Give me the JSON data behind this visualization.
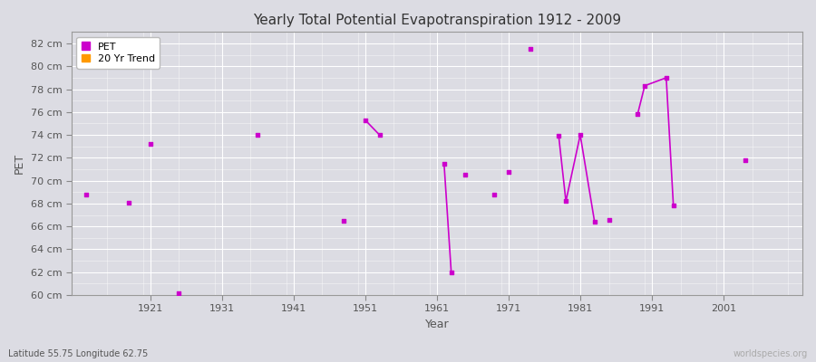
{
  "title": "Yearly Total Potential Evapotranspiration 1912 - 2009",
  "xlabel": "Year",
  "ylabel": "PET",
  "subtitle": "Latitude 55.75 Longitude 62.75",
  "watermark": "worldspecies.org",
  "ylim": [
    60,
    83
  ],
  "xlim": [
    1910,
    2012
  ],
  "ytick_values": [
    60,
    62,
    64,
    66,
    68,
    70,
    72,
    74,
    76,
    78,
    80,
    82
  ],
  "ytick_labels": [
    "60 cm",
    "62 cm",
    "64 cm",
    "66 cm",
    "68 cm",
    "70 cm",
    "72 cm",
    "74 cm",
    "76 cm",
    "78 cm",
    "80 cm",
    "82 cm"
  ],
  "xtick_values": [
    1921,
    1931,
    1941,
    1951,
    1961,
    1971,
    1981,
    1991,
    2001
  ],
  "background_color": "#dcdce3",
  "plot_bg_color": "#dcdce3",
  "grid_color": "#ffffff",
  "pet_color": "#cc00cc",
  "trend_color": "#ff9900",
  "pet_points": [
    [
      1912,
      68.8
    ],
    [
      1918,
      68.1
    ],
    [
      1921,
      73.2
    ],
    [
      1925,
      60.2
    ],
    [
      1936,
      74.0
    ],
    [
      1948,
      66.5
    ],
    [
      1951,
      75.3
    ],
    [
      1953,
      74.0
    ],
    [
      1962,
      71.5
    ],
    [
      1963,
      62.0
    ],
    [
      1965,
      70.5
    ],
    [
      1969,
      68.8
    ],
    [
      1971,
      70.8
    ],
    [
      1974,
      81.5
    ],
    [
      1978,
      73.9
    ],
    [
      1979,
      68.2
    ],
    [
      1981,
      74.0
    ],
    [
      1983,
      66.4
    ],
    [
      1985,
      66.6
    ],
    [
      1989,
      75.8
    ],
    [
      1990,
      78.3
    ],
    [
      1993,
      79.0
    ],
    [
      1994,
      67.8
    ],
    [
      2004,
      71.8
    ]
  ],
  "trend_segments": [
    [
      [
        1951,
        75.3
      ],
      [
        1953,
        74.0
      ]
    ],
    [
      [
        1962,
        71.5
      ],
      [
        1963,
        62.0
      ]
    ],
    [
      [
        1978,
        73.9
      ],
      [
        1979,
        68.2
      ],
      [
        1981,
        74.0
      ],
      [
        1983,
        66.4
      ]
    ],
    [
      [
        1989,
        75.8
      ],
      [
        1990,
        78.3
      ],
      [
        1993,
        79.0
      ],
      [
        1994,
        67.8
      ]
    ]
  ]
}
